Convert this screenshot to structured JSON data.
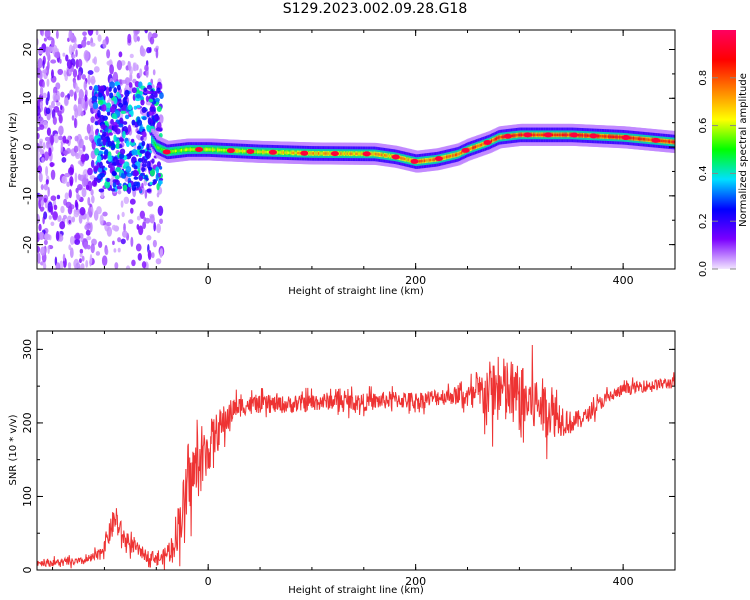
{
  "title": "S129.2023.002.09.28.G18",
  "chart_data": [
    {
      "type": "heatmap",
      "title": "S129.2023.002.09.28.G18",
      "xlabel": "Height of straight line (km)",
      "ylabel": "Frequency (Hz)",
      "xlim": [
        -165,
        450
      ],
      "ylim": [
        -25,
        24
      ],
      "x_ticks": [
        0,
        200,
        400
      ],
      "y_ticks": [
        -20,
        -10,
        0,
        10,
        20
      ],
      "colorbar": {
        "label": "Normalized spectral amplitude",
        "range": [
          0,
          1
        ],
        "ticks": [
          "0.0",
          "0.2",
          "0.4",
          "0.6",
          "0.8"
        ],
        "colors": [
          "#f2e6ff",
          "#7a00ff",
          "#0000ff",
          "#00e0ff",
          "#00ff00",
          "#ffff00",
          "#ff8000",
          "#ff0000",
          "#ff0060"
        ]
      },
      "ridge": {
        "x": [
          -60,
          -50,
          -40,
          -20,
          0,
          50,
          100,
          160,
          180,
          200,
          220,
          240,
          250,
          270,
          280,
          300,
          350,
          400,
          450
        ],
        "y": [
          3,
          0,
          -1,
          -0.5,
          -0.5,
          -1,
          -1.3,
          -1.4,
          -2,
          -3,
          -2.5,
          -1.5,
          -0.5,
          1,
          2,
          2.5,
          2.5,
          2,
          1
        ],
        "amp": [
          0.45,
          0.5,
          0.55,
          0.6,
          0.6,
          0.62,
          0.7,
          0.72,
          0.72,
          0.75,
          0.75,
          0.78,
          0.8,
          0.82,
          0.85,
          0.85,
          0.86,
          0.86,
          0.85
        ]
      }
    },
    {
      "type": "line",
      "xlabel": "Height of straight line (km)",
      "ylabel": "SNR (10 * v/v)",
      "xlim": [
        -165,
        450
      ],
      "ylim": [
        0,
        325
      ],
      "x_ticks": [
        0,
        200,
        400
      ],
      "y_ticks": [
        0,
        100,
        200,
        300
      ],
      "color": "#ee3333",
      "series": [
        {
          "x": [
            -165,
            -140,
            -120,
            -105,
            -95,
            -90,
            -80,
            -60,
            -45,
            -35,
            -25,
            -15,
            -5,
            5,
            15,
            25,
            40,
            60,
            80,
            100,
            120,
            150,
            180,
            200,
            220,
            240,
            255,
            265,
            275,
            290,
            305,
            320,
            335,
            350,
            365,
            380,
            400,
            420,
            450
          ],
          "y": [
            10,
            10,
            12,
            20,
            50,
            70,
            40,
            20,
            15,
            30,
            80,
            130,
            150,
            180,
            200,
            220,
            225,
            225,
            225,
            228,
            230,
            228,
            232,
            230,
            235,
            238,
            235,
            240,
            245,
            240,
            230,
            225,
            210,
            200,
            210,
            230,
            245,
            250,
            255
          ],
          "noise": [
            5,
            5,
            5,
            8,
            15,
            20,
            12,
            8,
            8,
            20,
            40,
            45,
            40,
            30,
            25,
            15,
            12,
            12,
            12,
            12,
            12,
            12,
            12,
            12,
            12,
            12,
            20,
            35,
            45,
            50,
            45,
            40,
            30,
            15,
            10,
            10,
            8,
            8,
            8
          ]
        }
      ]
    }
  ]
}
